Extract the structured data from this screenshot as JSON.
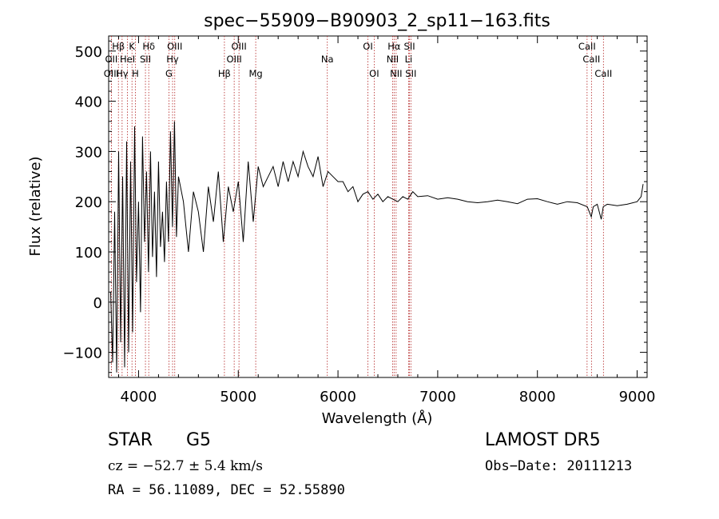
{
  "chart_data": {
    "type": "line",
    "title": "spec−55909−B90903_2_sp11−163.fits",
    "xlabel": "Wavelength (Å)",
    "ylabel": "Flux (relative)",
    "xlim": [
      3700,
      9100
    ],
    "ylim": [
      -150,
      530
    ],
    "x_ticks": [
      4000,
      5000,
      6000,
      7000,
      8000,
      9000
    ],
    "y_ticks": [
      -100,
      0,
      100,
      200,
      300,
      400,
      500
    ],
    "y_tick_labels": [
      "−100",
      "0",
      "100",
      "200",
      "300",
      "400",
      "500"
    ],
    "grid": false,
    "series": [
      {
        "name": "",
        "x": [
          3720,
          3740,
          3760,
          3780,
          3800,
          3820,
          3840,
          3860,
          3880,
          3900,
          3920,
          3940,
          3960,
          3980,
          4000,
          4020,
          4040,
          4060,
          4080,
          4100,
          4120,
          4140,
          4160,
          4180,
          4200,
          4220,
          4240,
          4260,
          4280,
          4300,
          4320,
          4340,
          4360,
          4380,
          4400,
          4450,
          4500,
          4550,
          4600,
          4650,
          4700,
          4750,
          4800,
          4850,
          4900,
          4950,
          5000,
          5050,
          5100,
          5150,
          5200,
          5250,
          5300,
          5350,
          5400,
          5450,
          5500,
          5550,
          5600,
          5650,
          5700,
          5750,
          5800,
          5850,
          5900,
          5950,
          6000,
          6050,
          6100,
          6150,
          6200,
          6250,
          6300,
          6350,
          6400,
          6450,
          6500,
          6550,
          6600,
          6650,
          6700,
          6750,
          6800,
          6900,
          7000,
          7100,
          7200,
          7300,
          7400,
          7500,
          7600,
          7700,
          7800,
          7900,
          8000,
          8100,
          8200,
          8300,
          8400,
          8500,
          8540,
          8560,
          8600,
          8640,
          8660,
          8700,
          8800,
          8900,
          9000,
          9040,
          9060
        ],
        "y": [
          20,
          -120,
          180,
          -140,
          300,
          -80,
          250,
          -130,
          320,
          -100,
          280,
          -60,
          350,
          40,
          200,
          -20,
          330,
          120,
          260,
          60,
          300,
          90,
          220,
          50,
          280,
          110,
          180,
          80,
          240,
          120,
          340,
          150,
          360,
          130,
          250,
          200,
          100,
          220,
          180,
          100,
          230,
          160,
          260,
          120,
          230,
          180,
          240,
          120,
          280,
          160,
          270,
          230,
          250,
          270,
          230,
          280,
          240,
          280,
          250,
          300,
          270,
          250,
          290,
          230,
          260,
          250,
          240,
          240,
          220,
          230,
          200,
          215,
          220,
          205,
          215,
          200,
          210,
          205,
          200,
          210,
          205,
          220,
          210,
          212,
          205,
          208,
          205,
          200,
          198,
          200,
          203,
          200,
          196,
          205,
          206,
          200,
          195,
          200,
          198,
          190,
          170,
          190,
          195,
          165,
          190,
          195,
          192,
          195,
          200,
          210,
          235
        ]
      }
    ],
    "annotations": [
      {
        "label": "Hβ",
        "x": 3798,
        "row": 1
      },
      {
        "label": "K",
        "x": 3934,
        "row": 1
      },
      {
        "label": "Hδ",
        "x": 4102,
        "row": 1
      },
      {
        "label": "OIII",
        "x": 4363,
        "row": 1
      },
      {
        "label": "OIII",
        "x": 5007,
        "row": 1
      },
      {
        "label": "OI",
        "x": 6300,
        "row": 1
      },
      {
        "label": "Hα",
        "x": 6563,
        "row": 1
      },
      {
        "label": "SII",
        "x": 6717,
        "row": 1
      },
      {
        "label": "CaII",
        "x": 8498,
        "row": 1
      },
      {
        "label": "OII",
        "x": 3727,
        "row": 2
      },
      {
        "label": "HeI",
        "x": 3889,
        "row": 2
      },
      {
        "label": "SII",
        "x": 4069,
        "row": 2
      },
      {
        "label": "Hγ",
        "x": 4341,
        "row": 2
      },
      {
        "label": "OIII",
        "x": 4959,
        "row": 2
      },
      {
        "label": "Na",
        "x": 5893,
        "row": 2
      },
      {
        "label": "NII",
        "x": 6548,
        "row": 2
      },
      {
        "label": "Li",
        "x": 6708,
        "row": 2
      },
      {
        "label": "CaII",
        "x": 8542,
        "row": 2
      },
      {
        "label": "OIII",
        "x": 3727,
        "row": 3
      },
      {
        "label": "Hγ",
        "x": 3835,
        "row": 3
      },
      {
        "label": "H",
        "x": 3968,
        "row": 3
      },
      {
        "label": "G",
        "x": 4305,
        "row": 3
      },
      {
        "label": "Hβ",
        "x": 4861,
        "row": 3
      },
      {
        "label": "Mg",
        "x": 5175,
        "row": 3
      },
      {
        "label": "OI",
        "x": 6363,
        "row": 3
      },
      {
        "label": "NII",
        "x": 6583,
        "row": 3
      },
      {
        "label": "SII",
        "x": 6731,
        "row": 3
      },
      {
        "label": "CaII",
        "x": 8662,
        "row": 3
      }
    ]
  },
  "info": {
    "object_class": "STAR",
    "subclass": "G5",
    "survey": "LAMOST DR5",
    "cz": "cz = −52.7 ± 5.4 km/s",
    "obs_date": "Obs−Date: 20111213",
    "coords": "RA =  56.11089, DEC =  52.55890"
  }
}
